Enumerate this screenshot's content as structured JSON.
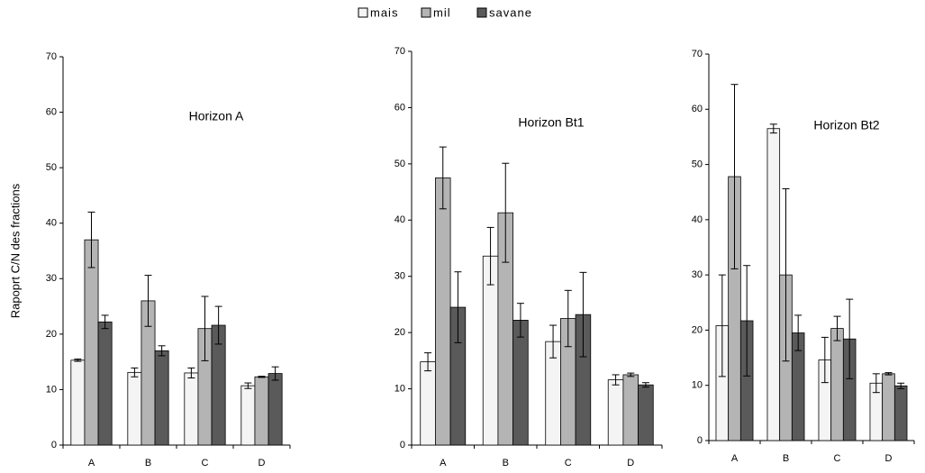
{
  "chart_data": [
    {
      "type": "bar",
      "title": "Horizon A",
      "y_label": "Rapoprt C/N des fractions",
      "categories": [
        "A",
        "B",
        "C",
        "D"
      ],
      "series": [
        {
          "name": "mais",
          "color": "#f4f4f4",
          "values": [
            15.3,
            13.1,
            13,
            10.7
          ],
          "errors": [
            0.2,
            0.8,
            0.9,
            0.5
          ]
        },
        {
          "name": "mil",
          "color": "#b4b4b4",
          "values": [
            37,
            26,
            21,
            12.3
          ],
          "errors": [
            5,
            4.6,
            5.8,
            0.1
          ]
        },
        {
          "name": "savane",
          "color": "#5a5a5a",
          "values": [
            22.2,
            17,
            21.6,
            12.9
          ],
          "errors": [
            1.2,
            0.9,
            3.4,
            1.2
          ]
        }
      ],
      "ylim": [
        0,
        70
      ],
      "yticks": [
        0,
        10,
        20,
        30,
        40,
        50,
        60,
        70
      ]
    },
    {
      "type": "bar",
      "title": "Horizon Bt1",
      "categories": [
        "A",
        "B",
        "C",
        "D"
      ],
      "series": [
        {
          "color": "#f4f4f4",
          "values": [
            14.8,
            33.6,
            18.4,
            11.6
          ],
          "errors": [
            1.6,
            5.1,
            2.9,
            0.9
          ]
        },
        {
          "color": "#b4b4b4",
          "values": [
            47.5,
            41.3,
            22.5,
            12.5
          ],
          "errors": [
            5.5,
            8.8,
            5,
            0.3
          ]
        },
        {
          "color": "#5a5a5a",
          "values": [
            24.5,
            22.2,
            23.2,
            10.7
          ],
          "errors": [
            6.3,
            3,
            7.5,
            0.4
          ]
        }
      ],
      "ylim": [
        0,
        70
      ],
      "yticks": [
        0,
        10,
        20,
        30,
        40,
        50,
        60,
        70
      ]
    },
    {
      "type": "bar",
      "title": "Horizon Bt2",
      "categories": [
        "A",
        "B",
        "C",
        "D"
      ],
      "series": [
        {
          "color": "#f4f4f4",
          "values": [
            20.8,
            56.5,
            14.6,
            10.4
          ],
          "errors": [
            9.2,
            0.8,
            4.1,
            1.7
          ]
        },
        {
          "color": "#b4b4b4",
          "values": [
            47.8,
            30,
            20.3,
            12.1
          ],
          "errors": [
            16.7,
            15.6,
            2.2,
            0.2
          ]
        },
        {
          "color": "#5a5a5a",
          "values": [
            21.7,
            19.5,
            18.4,
            9.9
          ],
          "errors": [
            10,
            3.2,
            7.2,
            0.5
          ]
        }
      ],
      "ylim": [
        0,
        70
      ],
      "yticks": [
        0,
        10,
        20,
        30,
        40,
        50,
        60,
        70
      ]
    }
  ]
}
